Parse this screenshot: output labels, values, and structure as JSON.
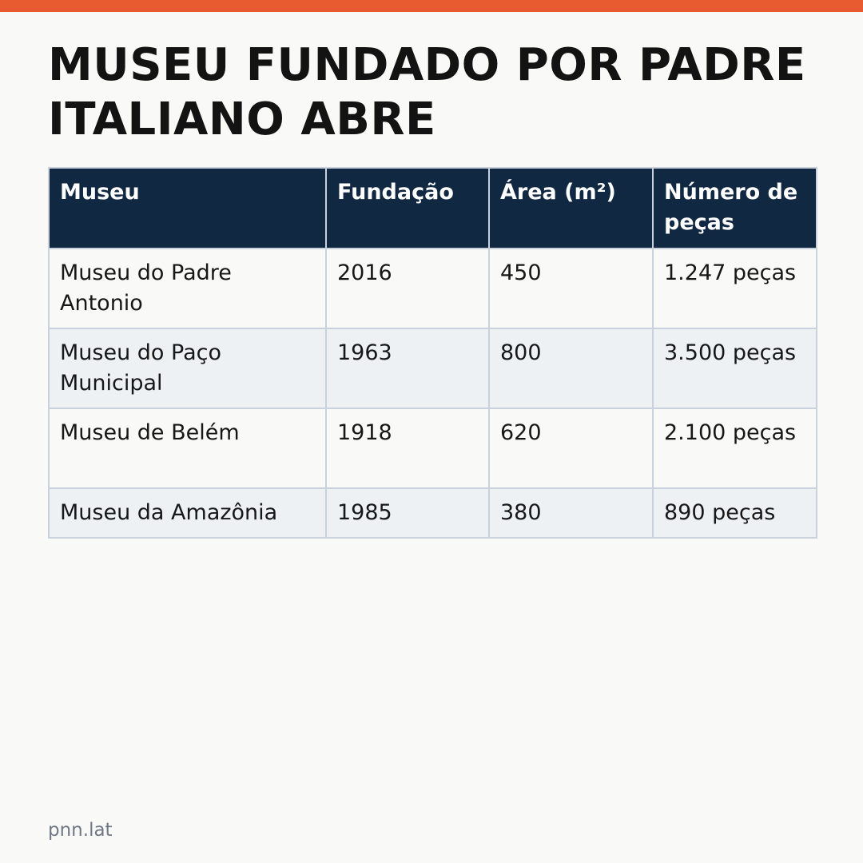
{
  "headline": "MUSEU FUNDADO POR PADRE ITALIANO ABRE",
  "colors": {
    "accent_bar": "#e85a2f",
    "table_header": "#112842",
    "row_alt": "#edf1f4",
    "source_text": "#707887"
  },
  "table": {
    "headers": [
      "Museu",
      "Fundação",
      "Área (m²)",
      "Número de peças"
    ],
    "rows": [
      [
        "Museu do Padre Antonio",
        "2016",
        "450",
        "1.247 peças"
      ],
      [
        "Museu do Paço Municipal",
        "1963",
        "800",
        "3.500 peças"
      ],
      [
        "Museu de Belém",
        "1918",
        "620",
        "2.100 peças"
      ],
      [
        "Museu da Amazônia",
        "1985",
        "380",
        "890 peças"
      ]
    ]
  },
  "source": "pnn.lat"
}
